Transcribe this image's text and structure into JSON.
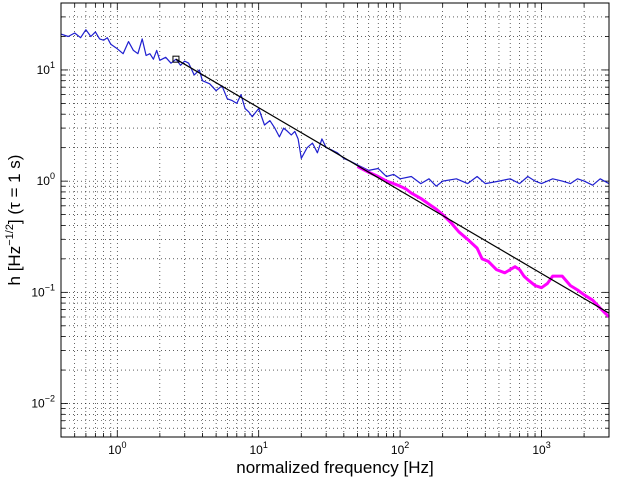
{
  "chart_data": {
    "type": "line",
    "title": "",
    "xlabel": "normalized frequency [Hz]",
    "ylabel": "h [Hz^-1/2] (τ = 1 s)",
    "ylabel_parts": {
      "main": "h [Hz",
      "sup": "−1/2",
      "tail": "] (τ = 1 s)"
    },
    "x_scale": "log",
    "y_scale": "log",
    "xlim": [
      0.4,
      3000
    ],
    "ylim": [
      0.005,
      40
    ],
    "grid": true,
    "legend": "none",
    "x_ticks": [
      {
        "value": 1,
        "base": "10",
        "exp": "0"
      },
      {
        "value": 10,
        "base": "10",
        "exp": "1"
      },
      {
        "value": 100,
        "base": "10",
        "exp": "2"
      },
      {
        "value": 1000,
        "base": "10",
        "exp": "3"
      }
    ],
    "y_ticks": [
      {
        "value": 0.01,
        "base": "10",
        "exp": "−2"
      },
      {
        "value": 0.1,
        "base": "10",
        "exp": "−1"
      },
      {
        "value": 1,
        "base": "10",
        "exp": "0"
      },
      {
        "value": 10,
        "base": "10",
        "exp": "1"
      }
    ],
    "colors": {
      "blue": "#1f1fd0",
      "magenta": "#ff00ff",
      "black": "#000000"
    },
    "series": [
      {
        "color": "blue",
        "x": [
          0.4,
          0.45,
          0.5,
          0.55,
          0.6,
          0.65,
          0.7,
          0.75,
          0.8,
          0.85,
          0.9,
          1.0,
          1.1,
          1.2,
          1.3,
          1.4,
          1.5,
          1.6,
          1.7,
          1.8,
          1.9,
          2.0,
          2.2,
          2.4,
          2.6,
          2.8,
          3.0,
          3.2,
          3.5,
          3.8,
          4.0,
          4.5,
          5.0,
          5.5,
          6.0,
          6.5,
          7.0,
          7.5,
          8.0,
          8.5,
          9.0,
          10,
          11,
          12,
          13,
          14,
          15,
          16,
          17,
          18,
          19,
          20,
          22,
          24,
          26,
          28,
          30,
          33,
          36,
          40,
          45,
          50,
          60,
          70,
          80,
          90,
          100,
          120,
          140,
          160,
          180,
          200,
          250,
          300,
          350,
          400,
          500,
          600,
          700,
          800,
          900,
          1000,
          1200,
          1400,
          1600,
          1800,
          2000,
          2300,
          2600,
          3000
        ],
        "y": [
          21,
          20,
          21.5,
          19.5,
          23,
          20,
          22,
          19,
          18.5,
          19.5,
          17,
          15.5,
          14,
          18,
          15,
          14,
          19,
          13.5,
          14,
          12.5,
          15,
          12.2,
          13,
          11.5,
          12.5,
          11,
          12,
          11.5,
          9,
          10,
          8,
          7.5,
          6.5,
          7.2,
          5.5,
          5.3,
          5.0,
          6.0,
          4.5,
          4.2,
          3.8,
          4.5,
          3.2,
          3.5,
          3.0,
          2.5,
          3.0,
          2.8,
          2.6,
          2.8,
          2.4,
          1.6,
          2.0,
          2.2,
          1.8,
          2.4,
          2.0,
          1.9,
          1.8,
          1.6,
          1.5,
          1.4,
          1.25,
          1.3,
          1.1,
          1.15,
          1.05,
          1.1,
          0.95,
          1.05,
          0.9,
          1.0,
          1.05,
          0.95,
          1.1,
          0.95,
          1.0,
          1.05,
          0.95,
          1.1,
          1.0,
          0.95,
          1.05,
          1.0,
          0.95,
          1.05,
          1.0,
          0.92,
          1.05,
          0.95
        ]
      },
      {
        "color": "magenta",
        "x": [
          50,
          60,
          70,
          80,
          90,
          100,
          110,
          120,
          140,
          160,
          180,
          200,
          230,
          260,
          300,
          350,
          380,
          420,
          480,
          550,
          600,
          650,
          700,
          750,
          800,
          900,
          1000,
          1100,
          1200,
          1400,
          1600,
          1800,
          2000,
          2300,
          2600,
          3000
        ],
        "y": [
          1.35,
          1.2,
          1.1,
          1.0,
          0.95,
          0.9,
          0.85,
          0.78,
          0.7,
          0.62,
          0.56,
          0.5,
          0.42,
          0.35,
          0.3,
          0.25,
          0.2,
          0.19,
          0.16,
          0.15,
          0.16,
          0.17,
          0.16,
          0.14,
          0.13,
          0.115,
          0.11,
          0.12,
          0.14,
          0.14,
          0.115,
          0.105,
          0.095,
          0.085,
          0.072,
          0.06
        ]
      },
      {
        "color": "black",
        "x": [
          2.6,
          3000
        ],
        "y": [
          12.5,
          0.065
        ]
      }
    ],
    "marker": {
      "x": 2.6,
      "y": 12.5,
      "shape": "square",
      "color": "black"
    }
  }
}
